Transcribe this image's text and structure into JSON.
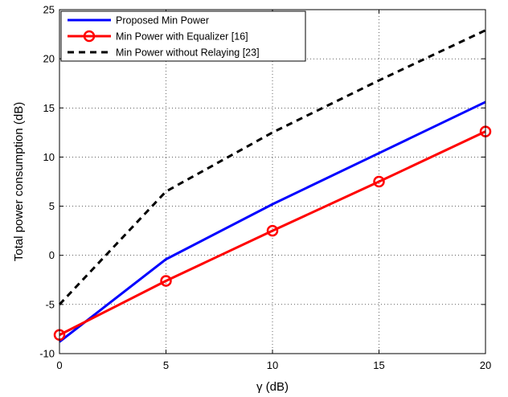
{
  "chart_data": {
    "type": "line",
    "xlabel": "γ (dB)",
    "ylabel": "Total power consumption (dB)",
    "xlim": [
      0,
      20
    ],
    "ylim": [
      -10,
      25
    ],
    "xticks": [
      0,
      5,
      10,
      15,
      20
    ],
    "yticks": [
      -10,
      -5,
      0,
      5,
      10,
      15,
      20,
      25
    ],
    "grid": true,
    "grid_style": "dotted",
    "legend_position": "top-left",
    "series": [
      {
        "name": "Proposed Min Power",
        "color": "#0000ff",
        "line_style": "solid",
        "marker": "none",
        "x": [
          0,
          5,
          10,
          15,
          20
        ],
        "y": [
          -8.8,
          -0.4,
          5.2,
          10.4,
          15.6
        ]
      },
      {
        "name": "Min Power with Equalizer [16]",
        "color": "#ff0000",
        "line_style": "solid",
        "marker": "circle",
        "x": [
          0,
          5,
          10,
          15,
          20
        ],
        "y": [
          -8.1,
          -2.6,
          2.5,
          7.5,
          12.6
        ]
      },
      {
        "name": "Min Power without Relaying [23]",
        "color": "#000000",
        "line_style": "dashed",
        "marker": "none",
        "x": [
          0,
          5,
          10,
          15,
          20
        ],
        "y": [
          -5.0,
          6.5,
          12.5,
          17.8,
          22.9
        ]
      }
    ]
  }
}
